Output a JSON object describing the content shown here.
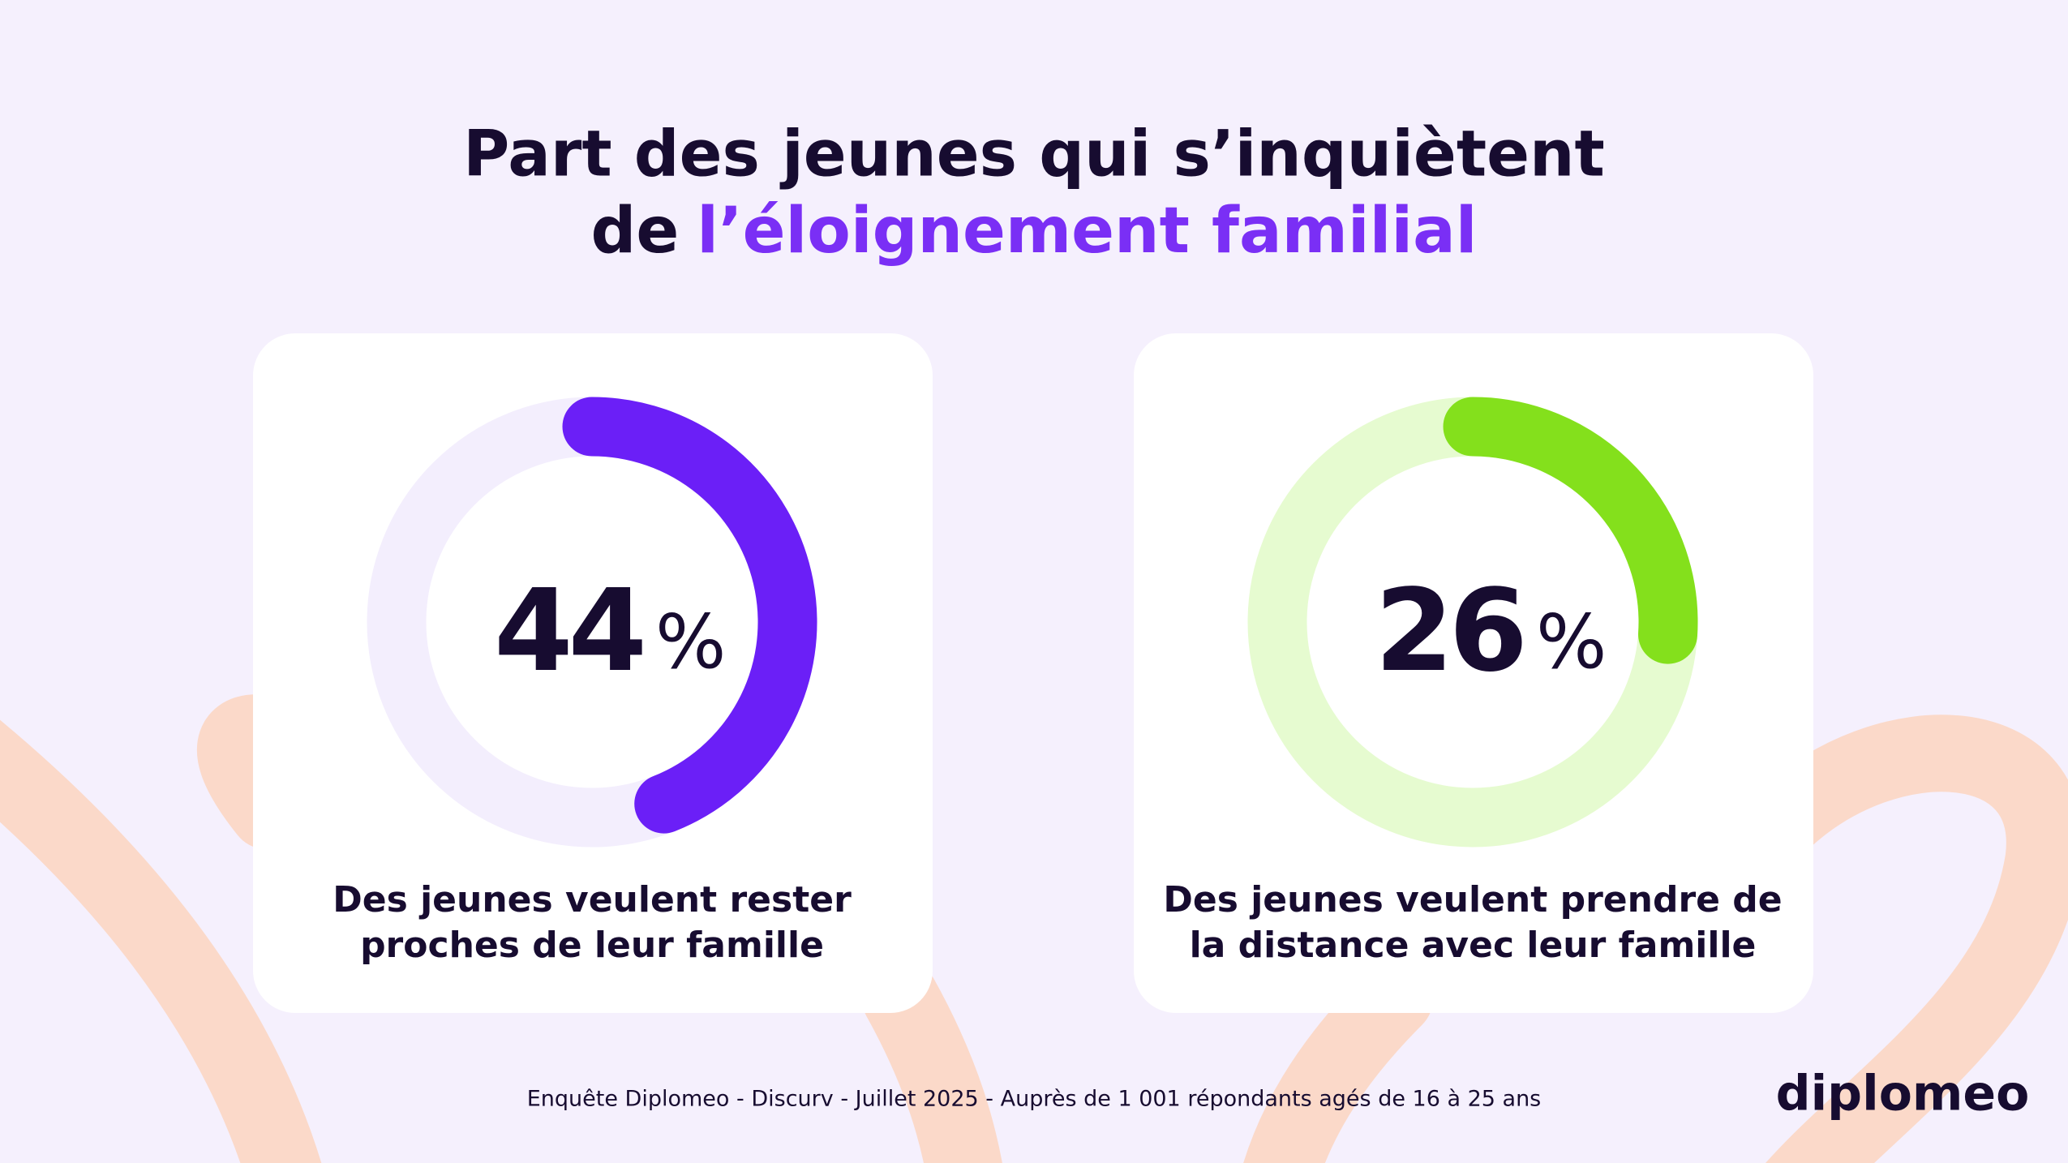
{
  "title": {
    "line1": "Part des jeunes qui s’inquiètent",
    "line2_start": "de",
    "line2_highlight": "l’éloignement familial"
  },
  "chart_data": [
    {
      "type": "donut",
      "values": [
        44
      ],
      "unit": "%",
      "color": "#6b1ff7",
      "track_color": "#f3eefd",
      "caption": [
        "Des jeunes veulent rester",
        "proches de leur famille"
      ]
    },
    {
      "type": "donut",
      "values": [
        26
      ],
      "unit": "%",
      "color": "#84e01c",
      "track_color": "#e6fbd0",
      "caption": [
        "Des jeunes veulent prendre de",
        "la distance avec leur famille"
      ]
    }
  ],
  "source": "Enquête Diplomeo - Discurv - Juillet 2025 - Auprès de 1 001 répondants agés de 16 à 25 ans",
  "logo": "diplomeo"
}
